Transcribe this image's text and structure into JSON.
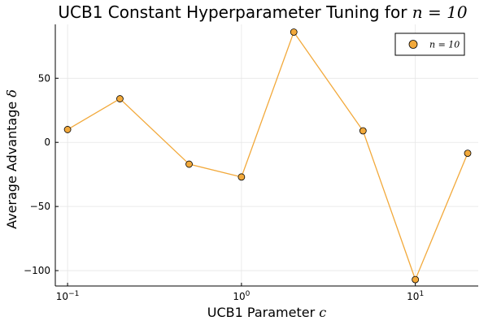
{
  "chart_data": {
    "type": "line",
    "title": {
      "text": "UCB1 Constant Hyperparameter Tuning for ",
      "math": "n = 10"
    },
    "xlabel": {
      "text": "UCB1 Parameter ",
      "math": "c"
    },
    "ylabel": {
      "text": "Average Advantage ",
      "math": "δ"
    },
    "xscale": "log10",
    "xlim": [
      0.085,
      23
    ],
    "ylim": [
      -112,
      92
    ],
    "xticks": [
      {
        "value": 0.1,
        "base": "10",
        "exp": "−1"
      },
      {
        "value": 1,
        "base": "10",
        "exp": "0"
      },
      {
        "value": 10,
        "base": "10",
        "exp": "1"
      }
    ],
    "yticks": [
      {
        "value": 50,
        "label": "50"
      },
      {
        "value": 0,
        "label": "0"
      },
      {
        "value": -50,
        "label": "−50"
      },
      {
        "value": -100,
        "label": "−100"
      }
    ],
    "grid": true,
    "legend_position": "top-right",
    "series": [
      {
        "name": "n = 10",
        "color": "#f2a93b",
        "edge_color": "#000000",
        "x": [
          0.1,
          0.2,
          0.5,
          1,
          2,
          5,
          10,
          20
        ],
        "y": [
          10,
          34,
          -17,
          -27,
          86,
          9,
          -107,
          -8.5
        ]
      }
    ]
  }
}
